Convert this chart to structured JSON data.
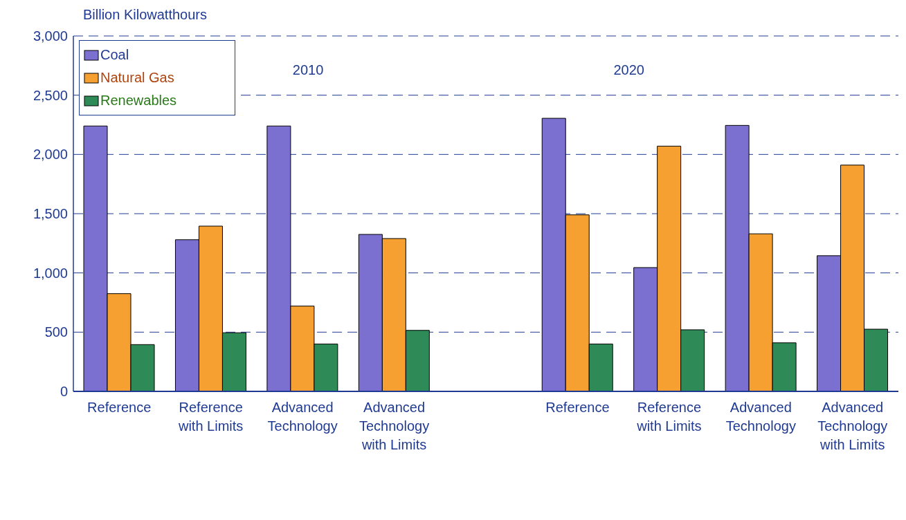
{
  "chart_data": {
    "type": "bar",
    "ylabel": "Billion Kilowatthours",
    "categories": [
      "Reference",
      "Reference with Limits",
      "Advanced Technology",
      "Advanced Technology with Limits",
      null,
      "Reference",
      "Reference with Limits",
      "Advanced Technology",
      "Advanced Technology with Limits"
    ],
    "series": [
      {
        "name": "Coal",
        "color": "#7b6fd0",
        "values": [
          2240,
          1280,
          2240,
          1325,
          null,
          2305,
          1045,
          2245,
          1145
        ]
      },
      {
        "name": "Natural Gas",
        "color": "#f5a030",
        "values": [
          825,
          1395,
          720,
          1290,
          null,
          1490,
          2070,
          1330,
          1910
        ]
      },
      {
        "name": "Renewables",
        "color": "#2e8b57",
        "values": [
          395,
          495,
          400,
          515,
          null,
          400,
          520,
          410,
          525
        ]
      }
    ],
    "ylim": [
      0,
      3000
    ],
    "yticks": [
      0,
      500,
      {
        "value": 1000,
        "label": "1,000"
      },
      {
        "value": 1500,
        "label": "1,500"
      },
      {
        "value": 2000,
        "label": "2,000"
      },
      {
        "value": 2500,
        "label": "2,500"
      },
      {
        "value": 3000,
        "label": "3,000"
      }
    ],
    "grid": "y",
    "legend": "top left",
    "annotations": [
      "2010",
      "2020"
    ]
  }
}
